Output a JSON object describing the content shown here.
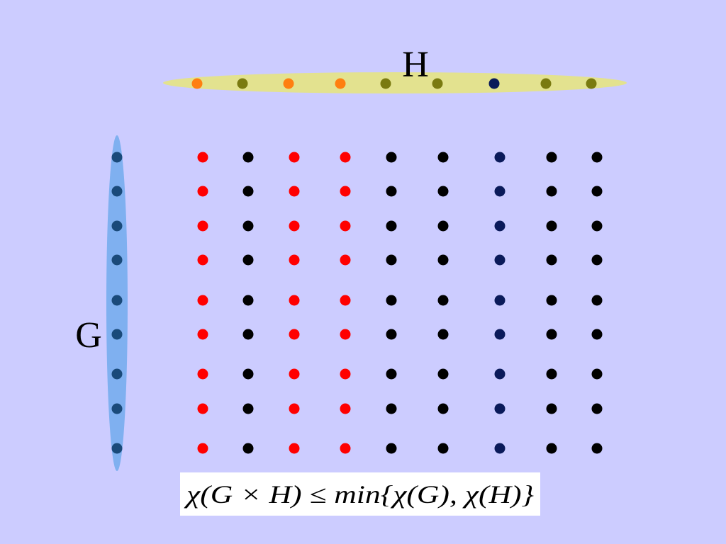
{
  "labels": {
    "h": "H",
    "g": "G"
  },
  "formula": "χ(G × H) ≤ min{χ(G), χ(H)}"
}
